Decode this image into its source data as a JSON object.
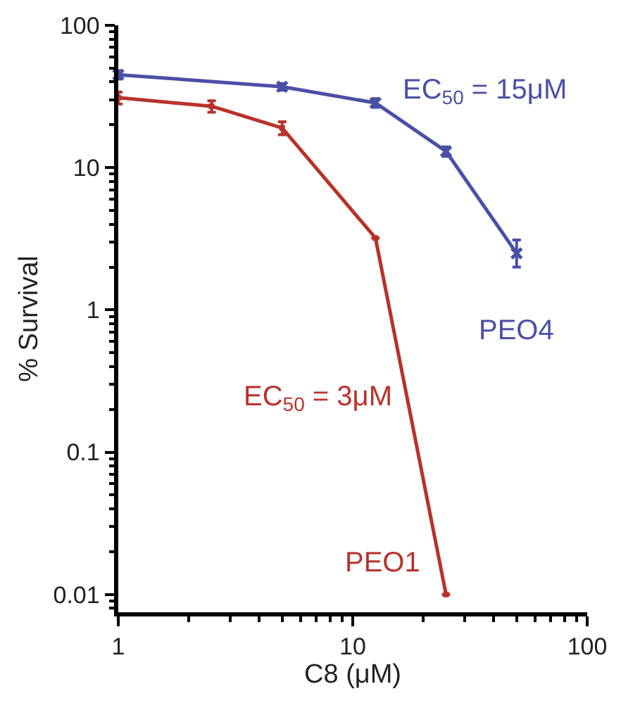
{
  "chart_data": {
    "type": "line",
    "xlabel": "C8 (μM)",
    "ylabel": "% Survival",
    "log": "xy",
    "xlim": [
      1,
      100
    ],
    "xticks": [
      1,
      10,
      100
    ],
    "ylim": [
      0.0075,
      100
    ],
    "yticks": [
      0.01,
      0.1,
      1,
      10,
      100
    ],
    "grid": false,
    "legend": false,
    "line_style": "solid",
    "series": [
      {
        "name": "PEO4",
        "color": "#4a4fa6",
        "marker": "cross",
        "x": [
          1,
          5,
          12.5,
          25,
          50
        ],
        "values": [
          45,
          37,
          28.5,
          13,
          2.5
        ],
        "errors": [
          3,
          2,
          2,
          1,
          [
            2.0,
            3.1
          ]
        ]
      },
      {
        "name": "PEO1",
        "color": "#b8322a",
        "marker": "square",
        "x": [
          1,
          2.5,
          5,
          12.5,
          25
        ],
        "values": [
          31,
          27,
          19,
          3.2,
          0.01
        ],
        "errors": [
          3,
          2.5,
          2,
          null,
          null
        ]
      }
    ],
    "annotations": [
      "EC$_{50}$ = 15μM",
      "EC$_{50}$ = 3μM"
    ]
  }
}
